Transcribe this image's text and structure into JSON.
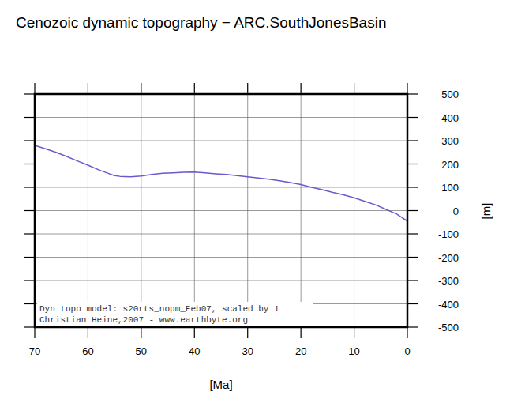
{
  "chart_data": {
    "type": "line",
    "title": "Cenozoic dynamic topography − ARC.SouthJonesBasin",
    "x_label": "[Ma]",
    "y_label": "[m]",
    "annotations": [
      "Dyn topo model: s20rts_nopm_Feb07, scaled by 1",
      "Christian Heine,2007 - www.earthbyte.org"
    ],
    "x": [
      70,
      68,
      66,
      64,
      62,
      60,
      58,
      56,
      55,
      54,
      52,
      50,
      48,
      46,
      44,
      42,
      40,
      38,
      36,
      34,
      32,
      30,
      28,
      26,
      24,
      22,
      20,
      18,
      16,
      14,
      12,
      10,
      8,
      6,
      4,
      2,
      0
    ],
    "values": [
      280,
      265,
      250,
      232,
      213,
      195,
      175,
      158,
      150,
      147,
      145,
      148,
      155,
      160,
      162,
      164,
      165,
      162,
      158,
      155,
      150,
      145,
      140,
      135,
      128,
      120,
      112,
      100,
      90,
      78,
      68,
      55,
      40,
      25,
      5,
      -15,
      -45
    ],
    "color": "#6a5acd",
    "xlim": [
      70,
      0
    ],
    "ylim": [
      -500,
      500
    ],
    "xticks": [
      70,
      60,
      50,
      40,
      30,
      20,
      10,
      0
    ],
    "yticks": [
      -500,
      -400,
      -300,
      -200,
      -100,
      0,
      100,
      200,
      300,
      400,
      500
    ],
    "grid": true
  }
}
